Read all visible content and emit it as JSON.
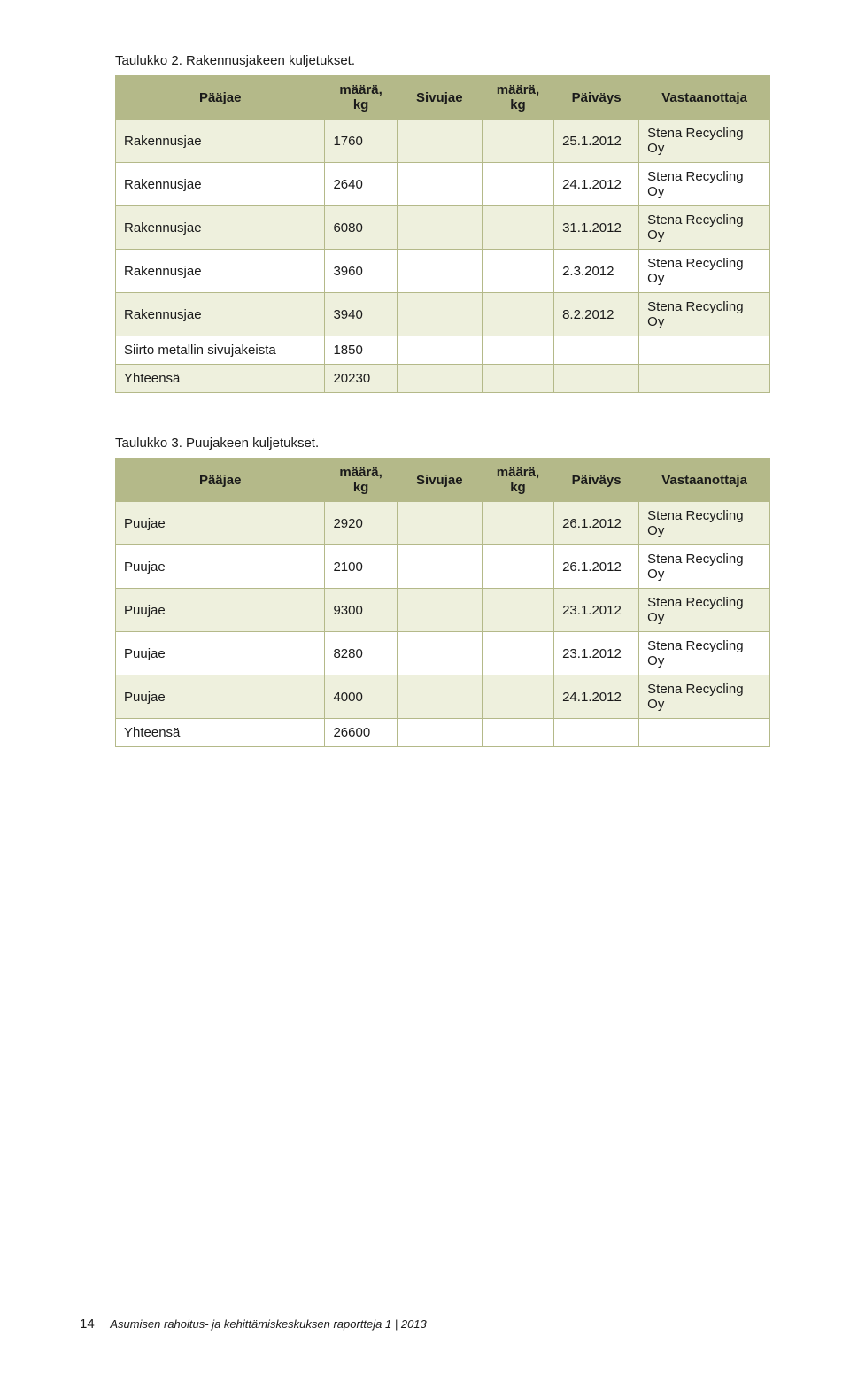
{
  "colors": {
    "header_bg": "#b4b989",
    "row_even": "#eef0dd",
    "row_odd": "#ffffff",
    "border": "#b4b989",
    "text": "#1a1a1a"
  },
  "table1": {
    "caption": "Taulukko 2. Rakennusjakeen kuljetukset.",
    "headers": [
      "Pääjae",
      "määrä, kg",
      "Sivujae",
      "määrä, kg",
      "Päiväys",
      "Vastaanottaja"
    ],
    "rows": [
      [
        "Rakennusjae",
        "1760",
        "",
        "",
        "25.1.2012",
        "Stena Recycling Oy"
      ],
      [
        "Rakennusjae",
        "2640",
        "",
        "",
        "24.1.2012",
        "Stena Recycling Oy"
      ],
      [
        "Rakennusjae",
        "6080",
        "",
        "",
        "31.1.2012",
        "Stena Recycling Oy"
      ],
      [
        "Rakennusjae",
        "3960",
        "",
        "",
        "2.3.2012",
        "Stena Recycling Oy"
      ],
      [
        "Rakennusjae",
        "3940",
        "",
        "",
        "8.2.2012",
        "Stena Recycling Oy"
      ],
      [
        "Siirto metallin sivujakeista",
        "1850",
        "",
        "",
        "",
        ""
      ],
      [
        "Yhteensä",
        "20230",
        "",
        "",
        "",
        ""
      ]
    ]
  },
  "table2": {
    "caption": "Taulukko 3. Puujakeen kuljetukset.",
    "headers": [
      "Pääjae",
      "määrä, kg",
      "Sivujae",
      "määrä, kg",
      "Päiväys",
      "Vastaanottaja"
    ],
    "rows": [
      [
        "Puujae",
        "2920",
        "",
        "",
        "26.1.2012",
        "Stena Recycling Oy"
      ],
      [
        "Puujae",
        "2100",
        "",
        "",
        "26.1.2012",
        "Stena Recycling Oy"
      ],
      [
        "Puujae",
        "9300",
        "",
        "",
        "23.1.2012",
        "Stena Recycling Oy"
      ],
      [
        "Puujae",
        "8280",
        "",
        "",
        "23.1.2012",
        "Stena Recycling Oy"
      ],
      [
        "Puujae",
        "4000",
        "",
        "",
        "24.1.2012",
        "Stena Recycling Oy"
      ],
      [
        "Yhteensä",
        "26600",
        "",
        "",
        "",
        ""
      ]
    ]
  },
  "footer": {
    "page_number": "14",
    "text": "Asumisen rahoitus- ja kehittämiskeskuksen raportteja  1 | 2013"
  }
}
